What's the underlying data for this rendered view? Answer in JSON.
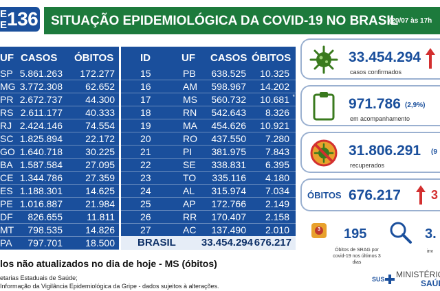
{
  "header": {
    "logo_letter_top": "E",
    "logo_letter_bottom": "E",
    "logo_number": "136",
    "title": "SITUAÇÃO EPIDEMIOLÓGICA DA COVID-19 NO BRASIL",
    "date": "(20/07 às 17h"
  },
  "table_left": {
    "headers": [
      "UF",
      "CASOS",
      "ÓBITOS"
    ],
    "rows": [
      [
        "SP",
        "5.861.263",
        "172.277"
      ],
      [
        "MG",
        "3.772.308",
        "62.652"
      ],
      [
        "PR",
        "2.672.737",
        "44.300"
      ],
      [
        "RS",
        "2.611.177",
        "40.333"
      ],
      [
        "RJ",
        "2.424.146",
        "74.554"
      ],
      [
        "SC",
        "1.825.894",
        "22.172"
      ],
      [
        "GO",
        "1.640.718",
        "30.225"
      ],
      [
        "BA",
        "1.587.584",
        "27.095"
      ],
      [
        "CE",
        "1.344.786",
        "27.359"
      ],
      [
        "ES",
        "1.188.301",
        "14.625"
      ],
      [
        "PE",
        "1.016.887",
        "21.984"
      ],
      [
        "DF",
        "826.655",
        "11.811"
      ],
      [
        "MT",
        "798.535",
        "14.826"
      ],
      [
        "PA",
        "797.701",
        "18.500"
      ]
    ]
  },
  "table_right": {
    "headers": [
      "ID",
      "UF",
      "CASOS",
      "ÓBITOS"
    ],
    "rows": [
      [
        "15",
        "PB",
        "638.525",
        "10.325",
        ""
      ],
      [
        "16",
        "AM",
        "598.967",
        "14.202",
        ""
      ],
      [
        "17",
        "MS",
        "560.732",
        "10.681",
        "*"
      ],
      [
        "18",
        "RN",
        "542.643",
        "8.326",
        ""
      ],
      [
        "19",
        "MA",
        "454.626",
        "10.921",
        ""
      ],
      [
        "20",
        "RO",
        "437.550",
        "7.280",
        ""
      ],
      [
        "21",
        "PI",
        "381.975",
        "7.843",
        ""
      ],
      [
        "22",
        "SE",
        "338.831",
        "6.395",
        ""
      ],
      [
        "23",
        "TO",
        "335.116",
        "4.180",
        ""
      ],
      [
        "24",
        "AL",
        "315.974",
        "7.034",
        ""
      ],
      [
        "25",
        "AP",
        "172.766",
        "2.149",
        ""
      ],
      [
        "26",
        "RR",
        "170.407",
        "2.158",
        ""
      ],
      [
        "27",
        "AC",
        "137.490",
        "2.010",
        ""
      ]
    ],
    "total": {
      "label": "BRASIL",
      "casos": "33.454.294",
      "obitos": "676.217"
    }
  },
  "panels": {
    "confirmados": {
      "value": "33.454.294",
      "label": "casos confirmados"
    },
    "acompanhamento": {
      "value": "971.786",
      "pct": "(2,9%)",
      "label": "em acompanhamento"
    },
    "recuperados": {
      "value": "31.806.291",
      "pct": "(9",
      "label": "recuperados"
    },
    "obitos": {
      "tag": "ÓBITOS",
      "value": "676.217",
      "extra": "3"
    }
  },
  "srag": {
    "value": "195",
    "text": "Óbitos de SRAG por covid-19 nos últimos 3 dias",
    "badge": "3"
  },
  "investigacao": {
    "value": "3.",
    "text": "inv"
  },
  "notes": {
    "main": "los não atualizados no dia de hoje - MS (óbitos)",
    "source1": "etarias Estaduais de Saúde;",
    "source2": "Informação da Vigilância Epidemiológica da Gripe - dados sujeitos à alterações."
  },
  "footer": {
    "sus": "SUS",
    "ministerio_line1": "MINISTÉRIO D",
    "ministerio_line2": "SAÚD"
  },
  "colors": {
    "blue": "#1a4f9c",
    "green": "#1d7a3c",
    "red": "#d32f2f",
    "virus_green": "#3a7a1e",
    "orange": "#e8a12c"
  }
}
